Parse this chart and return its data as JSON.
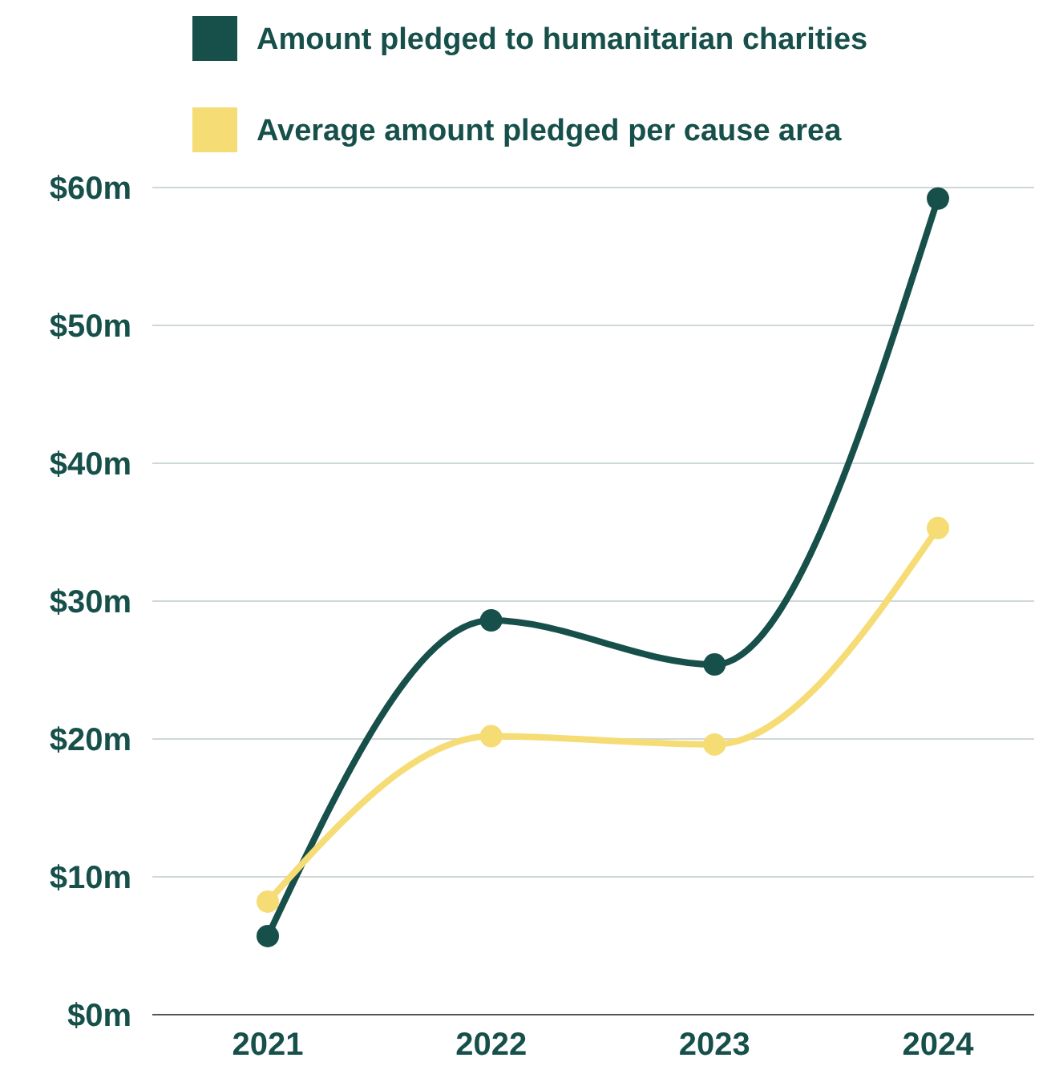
{
  "chart_data": {
    "type": "line",
    "categories": [
      "2021",
      "2022",
      "2023",
      "2024"
    ],
    "series": [
      {
        "name": "Amount pledged to humanitarian charities",
        "color": "#17504a",
        "values": [
          5.7,
          28.6,
          25.4,
          59.2
        ]
      },
      {
        "name": "Average amount pledged per cause area",
        "color": "#f6dc74",
        "values": [
          8.2,
          20.2,
          19.6,
          35.3
        ]
      }
    ],
    "ylim": [
      0,
      60
    ],
    "yticks": [
      {
        "value": 0,
        "label": "$0m"
      },
      {
        "value": 10,
        "label": "$10m"
      },
      {
        "value": 20,
        "label": "$20m"
      },
      {
        "value": 30,
        "label": "$30m"
      },
      {
        "value": 40,
        "label": "$40m"
      },
      {
        "value": 50,
        "label": "$50m"
      },
      {
        "value": 60,
        "label": "$60m"
      }
    ],
    "grid": "y",
    "legend": "top",
    "marker": "circle",
    "line_style": "solid"
  }
}
